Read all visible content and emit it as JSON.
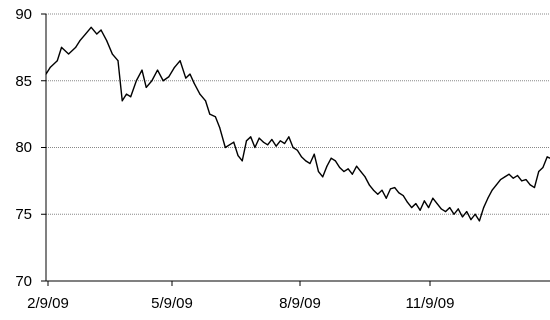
{
  "chart_data": {
    "type": "line",
    "title": "",
    "xlabel": "",
    "ylabel": "",
    "x_ticks": [
      "2/9/09",
      "5/9/09",
      "8/9/09",
      "11/9/09"
    ],
    "y_ticks": [
      "70",
      "75",
      "80",
      "85",
      "90"
    ],
    "ylim": [
      70,
      90
    ],
    "xlim": [
      "2009-02-09",
      "2010-02-01"
    ],
    "grid": "horizontal dotted",
    "legend": "none",
    "line_color": "#000000",
    "series": [
      {
        "points": [
          [
            "2009-02-09",
            85.5
          ],
          [
            "2009-02-12",
            86.0
          ],
          [
            "2009-02-17",
            86.5
          ],
          [
            "2009-02-20",
            87.5
          ],
          [
            "2009-02-25",
            87.0
          ],
          [
            "2009-03-02",
            87.5
          ],
          [
            "2009-03-05",
            88.0
          ],
          [
            "2009-03-09",
            88.5
          ],
          [
            "2009-03-13",
            89.0
          ],
          [
            "2009-03-17",
            88.5
          ],
          [
            "2009-03-20",
            88.8
          ],
          [
            "2009-03-24",
            88.0
          ],
          [
            "2009-03-28",
            87.0
          ],
          [
            "2009-04-01",
            86.5
          ],
          [
            "2009-04-04",
            83.5
          ],
          [
            "2009-04-07",
            84.0
          ],
          [
            "2009-04-10",
            83.8
          ],
          [
            "2009-04-14",
            85.0
          ],
          [
            "2009-04-18",
            85.8
          ],
          [
            "2009-04-21",
            84.5
          ],
          [
            "2009-04-25",
            85.0
          ],
          [
            "2009-04-29",
            85.8
          ],
          [
            "2009-05-03",
            85.0
          ],
          [
            "2009-05-07",
            85.3
          ],
          [
            "2009-05-11",
            86.0
          ],
          [
            "2009-05-15",
            86.5
          ],
          [
            "2009-05-19",
            85.2
          ],
          [
            "2009-05-22",
            85.5
          ],
          [
            "2009-05-25",
            84.8
          ],
          [
            "2009-05-29",
            84.0
          ],
          [
            "2009-06-02",
            83.5
          ],
          [
            "2009-06-05",
            82.5
          ],
          [
            "2009-06-09",
            82.3
          ],
          [
            "2009-06-12",
            81.5
          ],
          [
            "2009-06-16",
            80.0
          ],
          [
            "2009-06-19",
            80.2
          ],
          [
            "2009-06-22",
            80.4
          ],
          [
            "2009-06-25",
            79.4
          ],
          [
            "2009-06-28",
            79.0
          ],
          [
            "2009-07-01",
            80.5
          ],
          [
            "2009-07-04",
            80.8
          ],
          [
            "2009-07-07",
            80.0
          ],
          [
            "2009-07-10",
            80.7
          ],
          [
            "2009-07-13",
            80.4
          ],
          [
            "2009-07-16",
            80.2
          ],
          [
            "2009-07-19",
            80.6
          ],
          [
            "2009-07-22",
            80.1
          ],
          [
            "2009-07-25",
            80.5
          ],
          [
            "2009-07-28",
            80.3
          ],
          [
            "2009-07-31",
            80.8
          ],
          [
            "2009-08-03",
            80.0
          ],
          [
            "2009-08-06",
            79.8
          ],
          [
            "2009-08-09",
            79.3
          ],
          [
            "2009-08-12",
            79.0
          ],
          [
            "2009-08-15",
            78.8
          ],
          [
            "2009-08-18",
            79.5
          ],
          [
            "2009-08-21",
            78.2
          ],
          [
            "2009-08-24",
            77.8
          ],
          [
            "2009-08-27",
            78.6
          ],
          [
            "2009-08-30",
            79.2
          ],
          [
            "2009-09-02",
            79.0
          ],
          [
            "2009-09-05",
            78.5
          ],
          [
            "2009-09-08",
            78.2
          ],
          [
            "2009-09-11",
            78.4
          ],
          [
            "2009-09-14",
            78.0
          ],
          [
            "2009-09-17",
            78.6
          ],
          [
            "2009-09-20",
            78.2
          ],
          [
            "2009-09-23",
            77.8
          ],
          [
            "2009-09-26",
            77.2
          ],
          [
            "2009-09-29",
            76.8
          ],
          [
            "2009-10-02",
            76.5
          ],
          [
            "2009-10-05",
            76.8
          ],
          [
            "2009-10-08",
            76.2
          ],
          [
            "2009-10-11",
            76.9
          ],
          [
            "2009-10-14",
            77.0
          ],
          [
            "2009-10-17",
            76.6
          ],
          [
            "2009-10-20",
            76.4
          ],
          [
            "2009-10-23",
            75.9
          ],
          [
            "2009-10-26",
            75.5
          ],
          [
            "2009-10-29",
            75.8
          ],
          [
            "2009-11-01",
            75.3
          ],
          [
            "2009-11-04",
            76.0
          ],
          [
            "2009-11-07",
            75.5
          ],
          [
            "2009-11-10",
            76.2
          ],
          [
            "2009-11-13",
            75.8
          ],
          [
            "2009-11-16",
            75.4
          ],
          [
            "2009-11-19",
            75.2
          ],
          [
            "2009-11-22",
            75.5
          ],
          [
            "2009-11-25",
            75.0
          ],
          [
            "2009-11-28",
            75.4
          ],
          [
            "2009-12-01",
            74.8
          ],
          [
            "2009-12-04",
            75.2
          ],
          [
            "2009-12-07",
            74.6
          ],
          [
            "2009-12-10",
            75.0
          ],
          [
            "2009-12-13",
            74.5
          ],
          [
            "2009-12-16",
            75.5
          ],
          [
            "2009-12-19",
            76.2
          ],
          [
            "2009-12-22",
            76.8
          ],
          [
            "2009-12-25",
            77.2
          ],
          [
            "2009-12-28",
            77.6
          ],
          [
            "2009-12-31",
            77.8
          ],
          [
            "2010-01-03",
            78.0
          ],
          [
            "2010-01-06",
            77.7
          ],
          [
            "2010-01-09",
            77.9
          ],
          [
            "2010-01-12",
            77.5
          ],
          [
            "2010-01-15",
            77.6
          ],
          [
            "2010-01-18",
            77.2
          ],
          [
            "2010-01-21",
            77.0
          ],
          [
            "2010-01-24",
            78.2
          ],
          [
            "2010-01-27",
            78.5
          ],
          [
            "2010-01-30",
            79.3
          ],
          [
            "2010-02-01",
            79.2
          ]
        ]
      }
    ]
  }
}
